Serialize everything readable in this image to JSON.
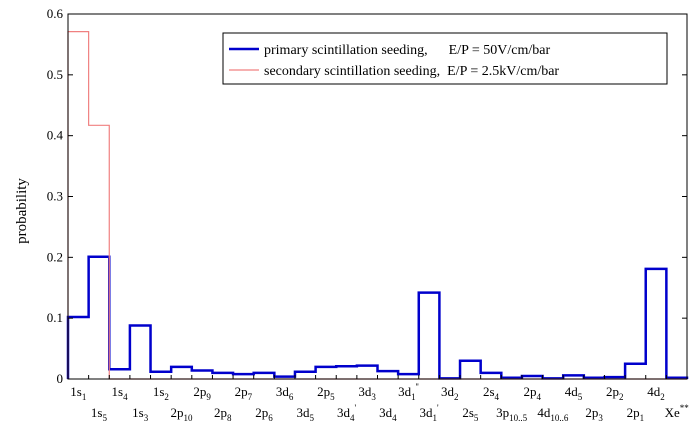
{
  "chart_data": {
    "type": "line",
    "title": "",
    "xlabel": "",
    "ylabel": "probability",
    "ylim": [
      0,
      0.6
    ],
    "yticks": [
      "0",
      "0.1",
      "0.2",
      "0.3",
      "0.4",
      "0.5",
      "0.6"
    ],
    "grid": false,
    "legend_position": "top-right",
    "categories": [
      {
        "base": "1s",
        "sub": "1"
      },
      {
        "base": "1s",
        "sub": "5"
      },
      {
        "base": "1s",
        "sub": "4"
      },
      {
        "base": "1s",
        "sub": "3"
      },
      {
        "base": "1s",
        "sub": "2"
      },
      {
        "base": "2p",
        "sub": "10"
      },
      {
        "base": "2p",
        "sub": "9"
      },
      {
        "base": "2p",
        "sub": "8"
      },
      {
        "base": "2p",
        "sub": "7"
      },
      {
        "base": "2p",
        "sub": "6"
      },
      {
        "base": "3d",
        "sub": "6"
      },
      {
        "base": "3d",
        "sub": "5"
      },
      {
        "base": "2p",
        "sub": "5"
      },
      {
        "base": "3d",
        "sub": "4",
        "sup": "'"
      },
      {
        "base": "3d",
        "sub": "3"
      },
      {
        "base": "3d",
        "sub": "4"
      },
      {
        "base": "3d",
        "sub": "1",
        "sup": "''"
      },
      {
        "base": "3d",
        "sub": "1",
        "sup": "'"
      },
      {
        "base": "3d",
        "sub": "2"
      },
      {
        "base": "2s",
        "sub": "5"
      },
      {
        "base": "2s",
        "sub": "4"
      },
      {
        "base": "3p",
        "sub": "10..5"
      },
      {
        "base": "2p",
        "sub": "4"
      },
      {
        "base": "4d",
        "sub": "10..6"
      },
      {
        "base": "4d",
        "sub": "5"
      },
      {
        "base": "2p",
        "sub": "3"
      },
      {
        "base": "2p",
        "sub": "2"
      },
      {
        "base": "2p",
        "sub": "1"
      },
      {
        "base": "4d",
        "sub": "2"
      },
      {
        "base": "Xe",
        "sup": "**"
      }
    ],
    "series": [
      {
        "name": "primary scintillation seeding,      E/P = 50V/cm/bar",
        "color": "#0000cc",
        "values": [
          0.102,
          0.201,
          0.016,
          0.088,
          0.012,
          0.02,
          0.014,
          0.01,
          0.008,
          0.01,
          0.004,
          0.012,
          0.02,
          0.021,
          0.022,
          0.013,
          0.008,
          0.142,
          0.001,
          0.03,
          0.01,
          0.002,
          0.005,
          0.001,
          0.006,
          0.002,
          0.003,
          0.025,
          0.181,
          0.002
        ]
      },
      {
        "name": "secondary scintillation seeding,  E/P = 2.5kV/cm/bar",
        "color": "#f08080",
        "values": [
          0.571,
          0.417,
          0.0,
          0.0,
          0.0,
          0.0,
          0.0,
          0.0,
          0.0,
          0.0,
          0.0,
          0.0,
          0.0,
          0.0,
          0.0,
          0.0,
          0.0,
          0.0,
          0.0,
          0.0,
          0.0,
          0.0,
          0.0,
          0.0,
          0.0,
          0.0,
          0.0,
          0.0,
          0.0,
          0.0
        ]
      }
    ]
  }
}
